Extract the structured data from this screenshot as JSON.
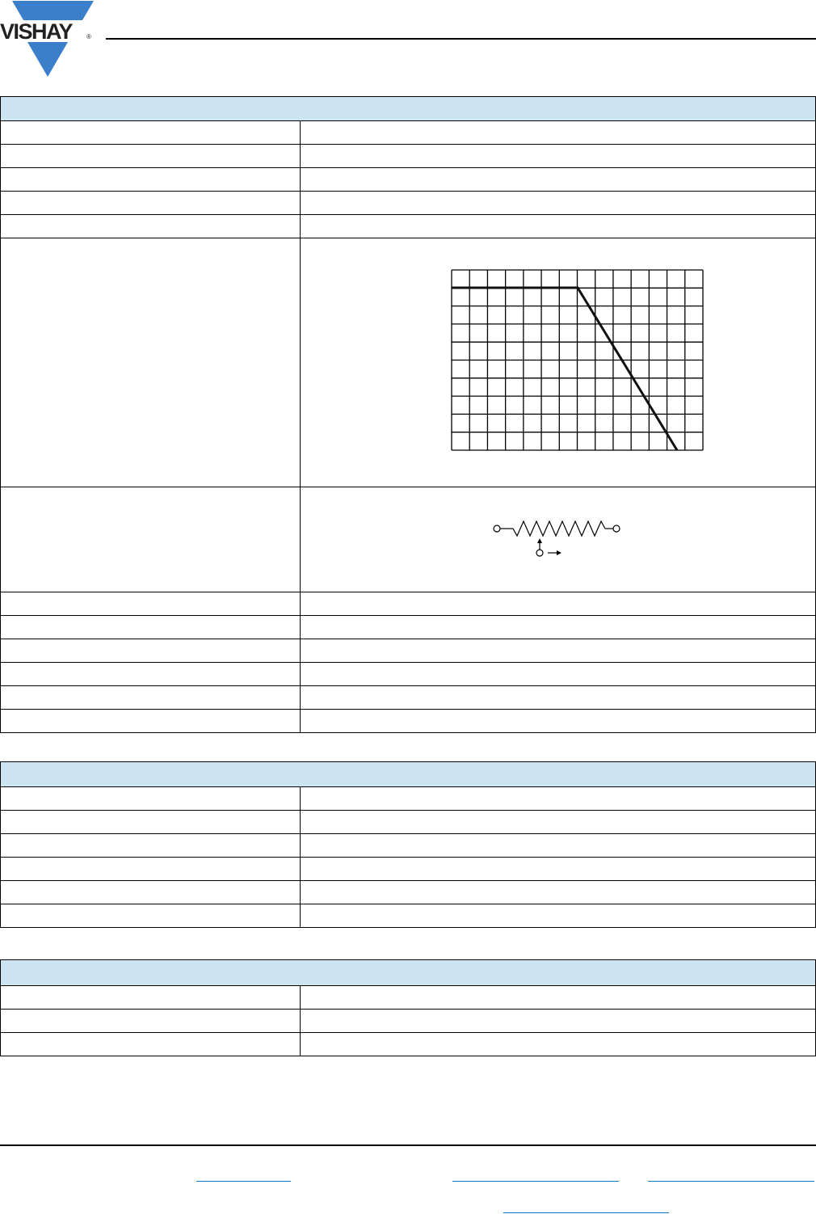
{
  "header": {
    "logo": {
      "text": "VISHAY",
      "registered_mark": "®",
      "color": "#3b7fca"
    }
  },
  "colors": {
    "table_header_bg": "#cde4f2",
    "link_color": "#0a7ac4"
  },
  "tables": [
    {
      "rows": 12,
      "special_rows": [
        "derating-chart",
        "circuit-symbol"
      ]
    },
    {
      "rows": 6
    },
    {
      "rows": 3
    }
  ],
  "icons": {
    "derating_chart": "derating-curve-graph",
    "symbol": "potentiometer-symbol"
  }
}
